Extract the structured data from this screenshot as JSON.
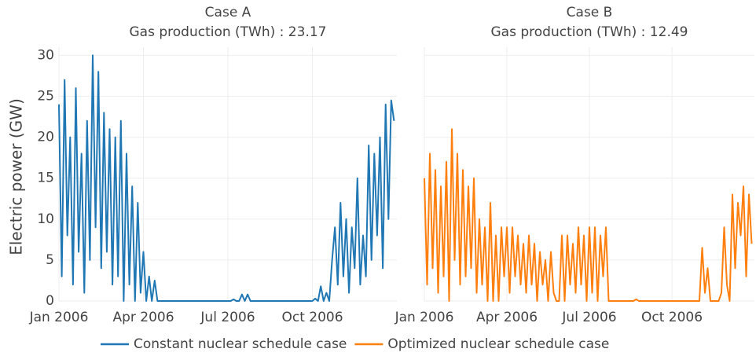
{
  "chart_data": [
    {
      "type": "line",
      "title": "Case A",
      "subtitle": "Gas production (TWh) : 23.17",
      "ylabel": "Electric power (GW)",
      "xlim": [
        "2006-01",
        "2007-01"
      ],
      "xticks": [
        {
          "value": "2006-01",
          "label": "Jan 2006"
        },
        {
          "value": "2006-04",
          "label": "Apr 2006"
        },
        {
          "value": "2006-07",
          "label": "Jul 2006"
        },
        {
          "value": "2006-10",
          "label": "Oct 2006"
        }
      ],
      "ylim": [
        0,
        31
      ],
      "yticks": [
        0,
        5,
        10,
        15,
        20,
        25,
        30
      ],
      "grid": true,
      "series": [
        {
          "name": "Constant nuclear schedule case",
          "color": "#1f77b4",
          "values": [
            24,
            3,
            27,
            8,
            20,
            2,
            26,
            6,
            18,
            1,
            22,
            5,
            30,
            9,
            28,
            4,
            23,
            6,
            21,
            2,
            20,
            3,
            22,
            0,
            18,
            2,
            14,
            0,
            12,
            1,
            6,
            0,
            3,
            0,
            2.5,
            0,
            0,
            0,
            0,
            0,
            0,
            0,
            0,
            0,
            0,
            0,
            0,
            0,
            0,
            0,
            0,
            0,
            0,
            0,
            0,
            0,
            0,
            0,
            0,
            0,
            0,
            0,
            0.2,
            0,
            0,
            0.8,
            0,
            0.8,
            0,
            0,
            0,
            0,
            0,
            0,
            0,
            0,
            0,
            0,
            0,
            0,
            0,
            0,
            0,
            0,
            0,
            0,
            0,
            0,
            0,
            0,
            0,
            0.3,
            0,
            1.8,
            0,
            1,
            0,
            5,
            9,
            2,
            12,
            3,
            10,
            1,
            9,
            4,
            15,
            2,
            8,
            3,
            19,
            5,
            18,
            8,
            20,
            4,
            24,
            10,
            24.5,
            22
          ]
        }
      ]
    },
    {
      "type": "line",
      "title": "Case B",
      "subtitle": "Gas production (TWh) : 12.49",
      "xlim": [
        "2006-01",
        "2007-01"
      ],
      "xticks": [
        {
          "value": "2006-01",
          "label": "Jan 2006"
        },
        {
          "value": "2006-04",
          "label": "Apr 2006"
        },
        {
          "value": "2006-07",
          "label": "Jul 2006"
        },
        {
          "value": "2006-10",
          "label": "Oct 2006"
        }
      ],
      "ylim": [
        0,
        31
      ],
      "grid": true,
      "series": [
        {
          "name": "Optimized nuclear schedule case",
          "color": "#ff7f0e",
          "values": [
            15,
            2,
            18,
            4,
            16,
            1,
            14,
            3,
            17,
            0,
            21,
            5,
            18,
            2,
            16,
            3,
            14,
            4,
            15,
            1,
            10,
            2,
            9,
            0,
            12,
            0,
            8,
            0,
            9,
            3,
            9,
            1,
            9,
            3,
            8,
            2,
            7,
            1,
            8,
            2,
            7,
            0,
            6,
            2,
            5,
            0,
            6,
            1,
            0,
            0,
            8,
            0,
            8,
            2,
            7,
            1,
            9,
            2,
            8,
            0,
            9,
            1,
            9,
            0,
            8,
            3,
            9,
            0,
            0,
            0,
            0,
            0,
            0,
            0,
            0,
            0,
            0,
            0.2,
            0,
            0,
            0,
            0,
            0,
            0,
            0,
            0,
            0,
            0,
            0,
            0,
            0,
            0,
            0,
            0,
            0,
            0,
            0,
            0,
            0,
            0,
            0,
            6.5,
            1,
            4,
            0,
            0,
            0,
            0,
            1,
            9,
            2,
            0,
            13,
            4,
            12,
            8,
            14,
            3,
            13,
            7
          ]
        }
      ]
    }
  ]
}
